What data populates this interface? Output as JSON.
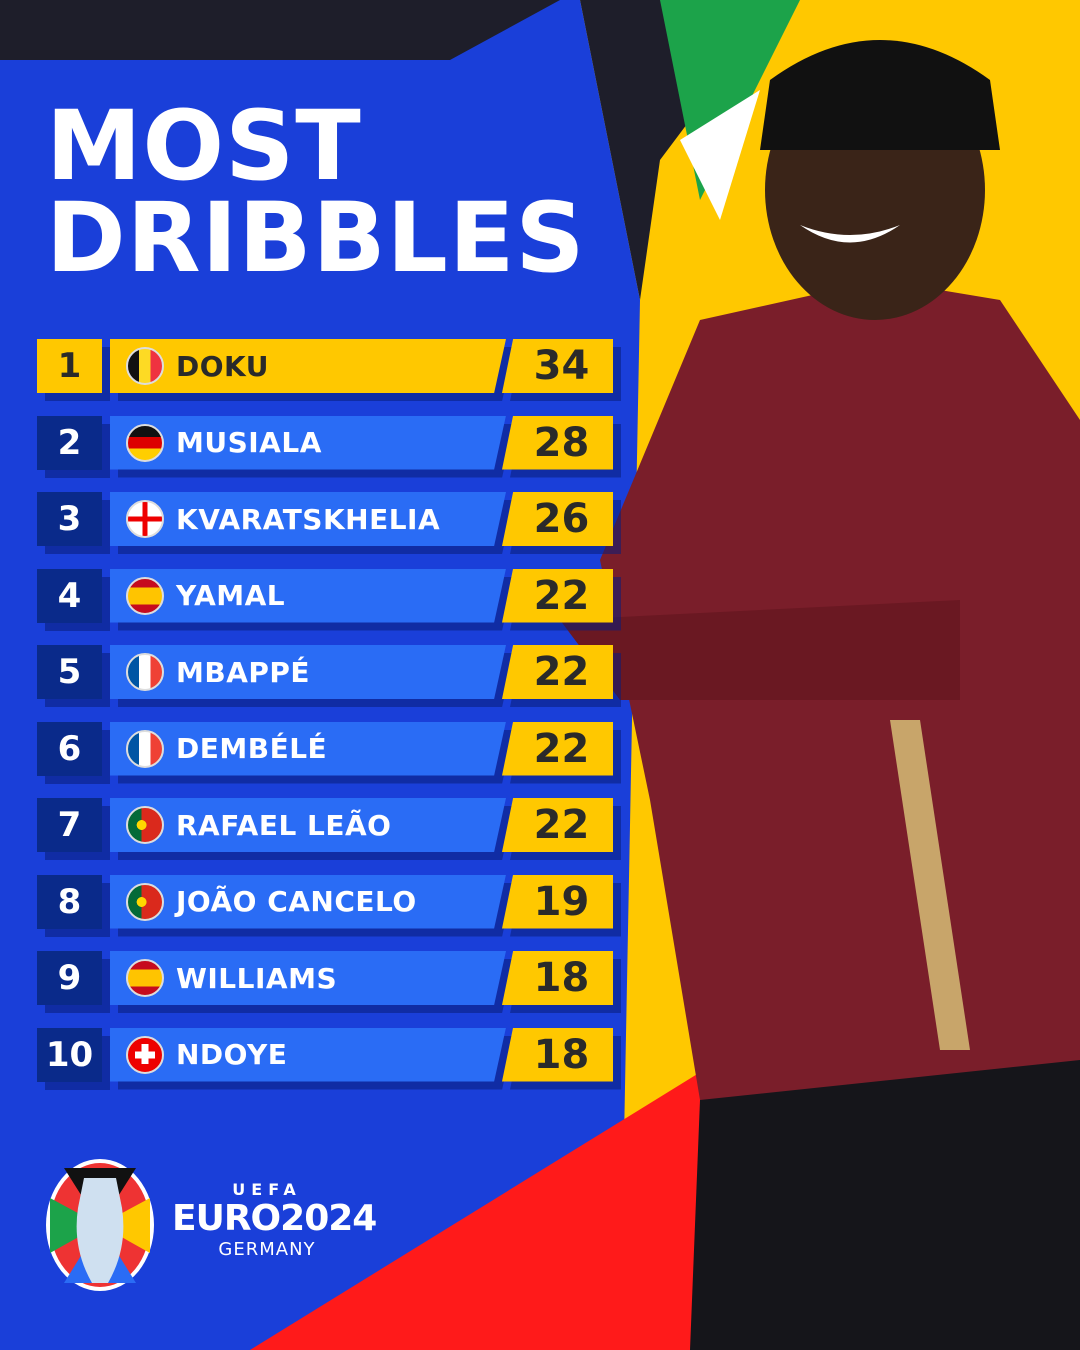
{
  "title_line1": "MOST",
  "title_line2": "DRIBBLES",
  "colors": {
    "background": "#1a3fd9",
    "highlight": "#ffc800",
    "bar": "#2a6cf5",
    "rank_box": "#0a2a8a"
  },
  "rows": [
    {
      "rank": "1",
      "flag": "belgium",
      "name": "DOKU",
      "value": "34"
    },
    {
      "rank": "2",
      "flag": "germany",
      "name": "MUSIALA",
      "value": "28"
    },
    {
      "rank": "3",
      "flag": "georgia",
      "name": "KVARATSKHELIA",
      "value": "26"
    },
    {
      "rank": "4",
      "flag": "spain",
      "name": "YAMAL",
      "value": "22"
    },
    {
      "rank": "5",
      "flag": "france",
      "name": "MBAPPÉ",
      "value": "22"
    },
    {
      "rank": "6",
      "flag": "france",
      "name": "DEMBÉLÉ",
      "value": "22"
    },
    {
      "rank": "7",
      "flag": "portugal",
      "name": "RAFAEL LEÃO",
      "value": "22"
    },
    {
      "rank": "8",
      "flag": "portugal",
      "name": "JOÃO CANCELO",
      "value": "19"
    },
    {
      "rank": "9",
      "flag": "spain",
      "name": "WILLIAMS",
      "value": "18"
    },
    {
      "rank": "10",
      "flag": "switzerland",
      "name": "NDOYE",
      "value": "18"
    }
  ],
  "logo": {
    "uefa": "UEFA",
    "event": "EURO2024",
    "host": "GERMANY"
  }
}
